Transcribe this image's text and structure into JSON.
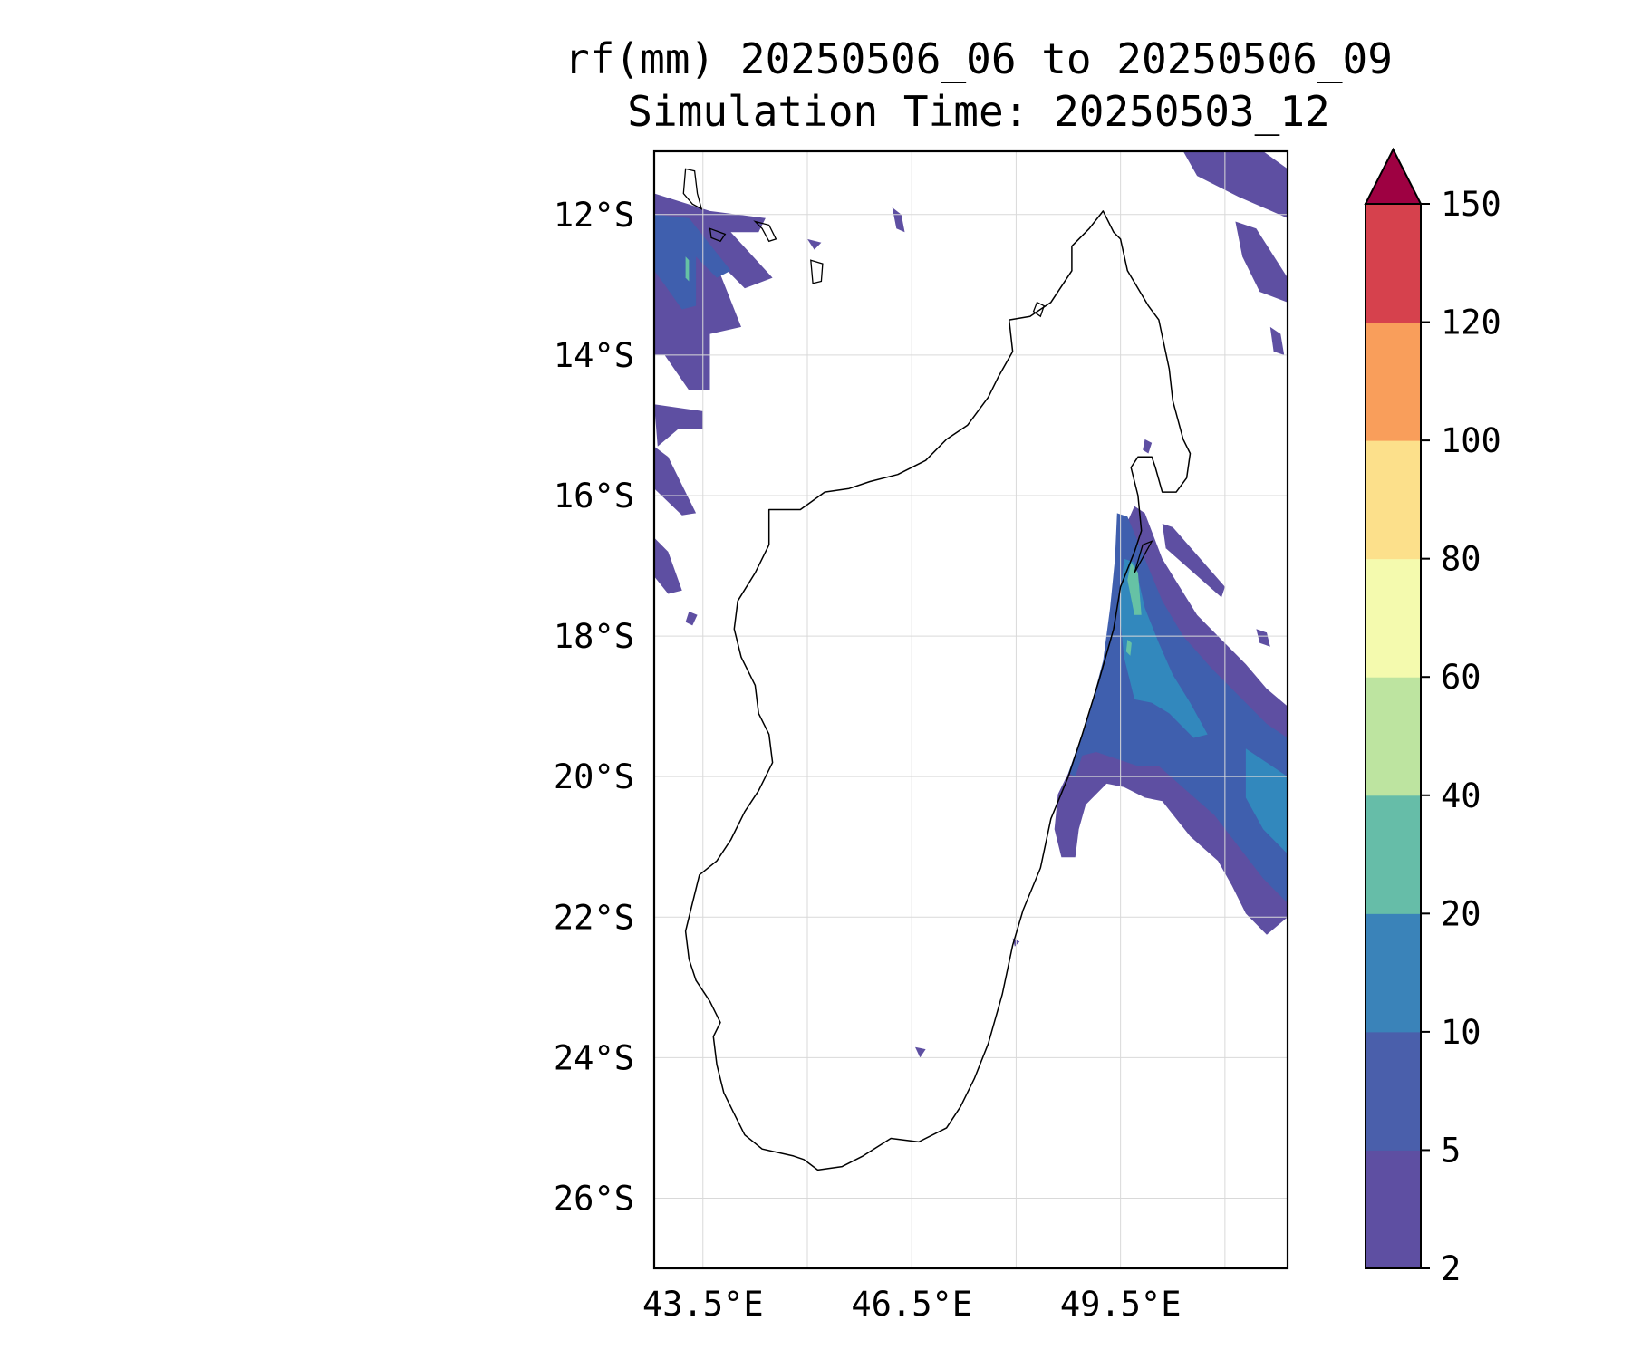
{
  "title": {
    "line1": "rf(mm) 20250506_06 to 20250506_09",
    "line2": "Simulation Time: 20250503_12"
  },
  "map": {
    "lon_range": [
      42.8,
      51.9
    ],
    "lat_range": [
      -27.0,
      -11.1
    ],
    "gridlines": true,
    "lat_ticks": [
      {
        "value": -12,
        "label": "12°S"
      },
      {
        "value": -14,
        "label": "14°S"
      },
      {
        "value": -16,
        "label": "16°S"
      },
      {
        "value": -18,
        "label": "18°S"
      },
      {
        "value": -20,
        "label": "20°S"
      },
      {
        "value": -22,
        "label": "22°S"
      },
      {
        "value": -24,
        "label": "24°S"
      },
      {
        "value": -26,
        "label": "26°S"
      }
    ],
    "lon_ticks": [
      {
        "value": 43.5,
        "label": "43.5°E"
      },
      {
        "value": 46.5,
        "label": "46.5°E"
      },
      {
        "value": 49.5,
        "label": "49.5°E"
      }
    ],
    "lon_gridlines": [
      43.5,
      45.0,
      46.5,
      48.0,
      49.5,
      51.0
    ],
    "coast_color": "#000000",
    "madagascar_coast": [
      [
        49.25,
        -11.95
      ],
      [
        49.4,
        -12.25
      ],
      [
        49.5,
        -12.35
      ],
      [
        49.6,
        -12.8
      ],
      [
        49.9,
        -13.3
      ],
      [
        50.05,
        -13.5
      ],
      [
        50.2,
        -14.2
      ],
      [
        50.25,
        -14.65
      ],
      [
        50.4,
        -15.2
      ],
      [
        50.5,
        -15.4
      ],
      [
        50.45,
        -15.75
      ],
      [
        50.3,
        -15.95
      ],
      [
        50.1,
        -15.95
      ],
      [
        50.0,
        -15.6
      ],
      [
        49.95,
        -15.45
      ],
      [
        49.75,
        -15.45
      ],
      [
        49.65,
        -15.6
      ],
      [
        49.75,
        -16.0
      ],
      [
        49.8,
        -16.5
      ],
      [
        49.7,
        -16.8
      ],
      [
        49.5,
        -17.3
      ],
      [
        49.4,
        -17.9
      ],
      [
        49.2,
        -18.6
      ],
      [
        48.95,
        -19.4
      ],
      [
        48.75,
        -20.0
      ],
      [
        48.5,
        -20.6
      ],
      [
        48.35,
        -21.3
      ],
      [
        48.1,
        -21.9
      ],
      [
        47.95,
        -22.4
      ],
      [
        47.8,
        -23.1
      ],
      [
        47.6,
        -23.8
      ],
      [
        47.4,
        -24.3
      ],
      [
        47.2,
        -24.7
      ],
      [
        47.0,
        -25.0
      ],
      [
        46.6,
        -25.2
      ],
      [
        46.2,
        -25.15
      ],
      [
        45.8,
        -25.4
      ],
      [
        45.5,
        -25.55
      ],
      [
        45.15,
        -25.6
      ],
      [
        44.95,
        -25.45
      ],
      [
        44.8,
        -25.4
      ],
      [
        44.35,
        -25.3
      ],
      [
        44.1,
        -25.1
      ],
      [
        43.95,
        -24.8
      ],
      [
        43.8,
        -24.5
      ],
      [
        43.7,
        -24.1
      ],
      [
        43.65,
        -23.7
      ],
      [
        43.75,
        -23.5
      ],
      [
        43.6,
        -23.2
      ],
      [
        43.4,
        -22.9
      ],
      [
        43.3,
        -22.6
      ],
      [
        43.25,
        -22.2
      ],
      [
        43.35,
        -21.8
      ],
      [
        43.45,
        -21.4
      ],
      [
        43.7,
        -21.2
      ],
      [
        43.9,
        -20.9
      ],
      [
        44.1,
        -20.5
      ],
      [
        44.3,
        -20.2
      ],
      [
        44.5,
        -19.8
      ],
      [
        44.45,
        -19.4
      ],
      [
        44.3,
        -19.1
      ],
      [
        44.25,
        -18.7
      ],
      [
        44.05,
        -18.3
      ],
      [
        43.95,
        -17.9
      ],
      [
        44.0,
        -17.5
      ],
      [
        44.25,
        -17.1
      ],
      [
        44.45,
        -16.7
      ],
      [
        44.45,
        -16.2
      ],
      [
        44.9,
        -16.2
      ],
      [
        45.25,
        -15.95
      ],
      [
        45.6,
        -15.9
      ],
      [
        45.9,
        -15.8
      ],
      [
        46.3,
        -15.7
      ],
      [
        46.7,
        -15.5
      ],
      [
        47.0,
        -15.2
      ],
      [
        47.3,
        -15.0
      ],
      [
        47.6,
        -14.6
      ],
      [
        47.75,
        -14.3
      ],
      [
        47.95,
        -13.95
      ],
      [
        47.9,
        -13.5
      ],
      [
        48.2,
        -13.45
      ],
      [
        48.5,
        -13.25
      ],
      [
        48.8,
        -12.8
      ],
      [
        48.8,
        -12.45
      ],
      [
        49.05,
        -12.2
      ],
      [
        49.25,
        -11.95
      ]
    ],
    "islands": [
      [
        [
          43.25,
          -11.35
        ],
        [
          43.38,
          -11.38
        ],
        [
          43.42,
          -11.7
        ],
        [
          43.48,
          -11.92
        ],
        [
          43.35,
          -11.85
        ],
        [
          43.22,
          -11.7
        ],
        [
          43.25,
          -11.35
        ]
      ],
      [
        [
          43.6,
          -12.2
        ],
        [
          43.82,
          -12.28
        ],
        [
          43.75,
          -12.38
        ],
        [
          43.62,
          -12.33
        ],
        [
          43.6,
          -12.2
        ]
      ],
      [
        [
          44.25,
          -12.1
        ],
        [
          44.45,
          -12.15
        ],
        [
          44.55,
          -12.35
        ],
        [
          44.45,
          -12.38
        ],
        [
          44.35,
          -12.2
        ],
        [
          44.25,
          -12.1
        ]
      ],
      [
        [
          45.05,
          -12.65
        ],
        [
          45.22,
          -12.7
        ],
        [
          45.2,
          -12.95
        ],
        [
          45.08,
          -12.98
        ],
        [
          45.05,
          -12.65
        ]
      ],
      [
        [
          48.3,
          -13.25
        ],
        [
          48.4,
          -13.3
        ],
        [
          48.35,
          -13.45
        ],
        [
          48.25,
          -13.38
        ],
        [
          48.3,
          -13.25
        ]
      ],
      [
        [
          49.82,
          -16.7
        ],
        [
          49.95,
          -16.65
        ],
        [
          49.7,
          -17.1
        ],
        [
          49.82,
          -16.7
        ]
      ]
    ],
    "rain_patches": [
      {
        "c": "#5e4fa2",
        "pts": [
          [
            42.8,
            -11.7
          ],
          [
            43.6,
            -11.95
          ],
          [
            44.4,
            -12.05
          ],
          [
            44.3,
            -12.25
          ],
          [
            43.9,
            -12.25
          ],
          [
            44.5,
            -12.9
          ],
          [
            44.1,
            -13.05
          ],
          [
            43.65,
            -12.6
          ],
          [
            44.05,
            -13.6
          ],
          [
            43.6,
            -13.7
          ],
          [
            43.6,
            -14.5
          ],
          [
            43.3,
            -14.5
          ],
          [
            42.95,
            -14.0
          ],
          [
            42.8,
            -14.0
          ]
        ]
      },
      {
        "c": "#5e4fa2",
        "pts": [
          [
            42.8,
            -14.7
          ],
          [
            43.5,
            -14.8
          ],
          [
            43.5,
            -15.05
          ],
          [
            43.15,
            -15.05
          ],
          [
            42.85,
            -15.3
          ]
        ]
      },
      {
        "c": "#5e4fa2",
        "pts": [
          [
            42.8,
            -15.3
          ],
          [
            43.0,
            -15.45
          ],
          [
            43.4,
            -16.25
          ],
          [
            43.2,
            -16.28
          ],
          [
            42.8,
            -15.9
          ]
        ]
      },
      {
        "c": "#5e4fa2",
        "pts": [
          [
            42.8,
            -16.6
          ],
          [
            43.0,
            -16.8
          ],
          [
            43.2,
            -17.35
          ],
          [
            43.0,
            -17.4
          ],
          [
            42.8,
            -17.15
          ]
        ]
      },
      {
        "c": "#5e4fa2",
        "pts": [
          [
            43.3,
            -17.65
          ],
          [
            43.42,
            -17.7
          ],
          [
            43.35,
            -17.85
          ],
          [
            43.25,
            -17.8
          ]
        ]
      },
      {
        "c": "#5e4fa2",
        "pts": [
          [
            45.0,
            -12.35
          ],
          [
            45.2,
            -12.4
          ],
          [
            45.1,
            -12.5
          ]
        ]
      },
      {
        "c": "#5e4fa2",
        "pts": [
          [
            46.22,
            -11.9
          ],
          [
            46.35,
            -12.0
          ],
          [
            46.4,
            -12.25
          ],
          [
            46.28,
            -12.2
          ]
        ]
      },
      {
        "c": "#5e4fa2",
        "pts": [
          [
            50.4,
            -11.1
          ],
          [
            51.55,
            -11.1
          ],
          [
            51.9,
            -11.35
          ],
          [
            51.9,
            -12.05
          ],
          [
            51.2,
            -11.75
          ],
          [
            50.6,
            -11.45
          ]
        ]
      },
      {
        "c": "#5e4fa2",
        "pts": [
          [
            51.15,
            -12.1
          ],
          [
            51.45,
            -12.2
          ],
          [
            51.9,
            -12.9
          ],
          [
            51.9,
            -13.25
          ],
          [
            51.5,
            -13.1
          ],
          [
            51.25,
            -12.6
          ]
        ]
      },
      {
        "c": "#5e4fa2",
        "pts": [
          [
            51.65,
            -13.6
          ],
          [
            51.8,
            -13.7
          ],
          [
            51.85,
            -14.0
          ],
          [
            51.7,
            -13.95
          ]
        ]
      },
      {
        "c": "#5e4fa2",
        "pts": [
          [
            49.85,
            -15.2
          ],
          [
            49.95,
            -15.25
          ],
          [
            49.9,
            -15.4
          ],
          [
            49.82,
            -15.35
          ]
        ]
      },
      {
        "c": "#5e4fa2",
        "pts": [
          [
            49.7,
            -16.15
          ],
          [
            49.85,
            -16.25
          ],
          [
            50.1,
            -16.9
          ],
          [
            50.35,
            -17.3
          ],
          [
            50.6,
            -17.7
          ],
          [
            50.95,
            -18.05
          ],
          [
            51.3,
            -18.4
          ],
          [
            51.6,
            -18.75
          ],
          [
            51.9,
            -19.0
          ],
          [
            51.9,
            -22.0
          ],
          [
            51.6,
            -22.25
          ],
          [
            51.3,
            -21.95
          ],
          [
            51.1,
            -21.55
          ],
          [
            50.9,
            -21.2
          ],
          [
            50.5,
            -20.85
          ],
          [
            50.3,
            -20.6
          ],
          [
            50.1,
            -20.35
          ],
          [
            49.85,
            -20.3
          ],
          [
            49.55,
            -20.15
          ],
          [
            49.3,
            -20.1
          ],
          [
            49.0,
            -20.4
          ],
          [
            48.9,
            -20.75
          ],
          [
            48.85,
            -21.15
          ],
          [
            48.65,
            -21.15
          ],
          [
            48.55,
            -20.75
          ],
          [
            48.6,
            -20.25
          ],
          [
            48.75,
            -19.95
          ],
          [
            48.95,
            -19.4
          ],
          [
            49.2,
            -18.6
          ],
          [
            49.35,
            -17.95
          ],
          [
            49.45,
            -17.2
          ],
          [
            49.5,
            -16.6
          ]
        ]
      },
      {
        "c": "#5e4fa2",
        "pts": [
          [
            50.1,
            -16.4
          ],
          [
            50.25,
            -16.45
          ],
          [
            51.0,
            -17.3
          ],
          [
            50.95,
            -17.45
          ],
          [
            50.15,
            -16.75
          ]
        ]
      },
      {
        "c": "#5e4fa2",
        "pts": [
          [
            51.45,
            -17.9
          ],
          [
            51.6,
            -17.95
          ],
          [
            51.65,
            -18.15
          ],
          [
            51.5,
            -18.1
          ]
        ]
      },
      {
        "c": "#5e4fa2",
        "pts": [
          [
            47.95,
            -22.3
          ],
          [
            48.05,
            -22.35
          ],
          [
            47.98,
            -22.42
          ]
        ]
      },
      {
        "c": "#5e4fa2",
        "pts": [
          [
            46.55,
            -23.85
          ],
          [
            46.7,
            -23.88
          ],
          [
            46.62,
            -24.0
          ]
        ]
      },
      {
        "c": "#3f5fae",
        "pts": [
          [
            42.8,
            -12.0
          ],
          [
            43.3,
            -12.05
          ],
          [
            43.5,
            -12.3
          ],
          [
            43.9,
            -12.8
          ],
          [
            43.7,
            -12.9
          ],
          [
            43.4,
            -12.6
          ],
          [
            43.4,
            -13.3
          ],
          [
            43.2,
            -13.35
          ],
          [
            42.95,
            -13.0
          ],
          [
            42.8,
            -12.8
          ]
        ]
      },
      {
        "c": "#3f5fae",
        "pts": [
          [
            49.45,
            -16.25
          ],
          [
            49.6,
            -16.3
          ],
          [
            49.85,
            -16.9
          ],
          [
            50.1,
            -17.5
          ],
          [
            50.4,
            -18.0
          ],
          [
            50.8,
            -18.45
          ],
          [
            51.2,
            -18.85
          ],
          [
            51.6,
            -19.25
          ],
          [
            51.9,
            -19.45
          ],
          [
            51.9,
            -21.8
          ],
          [
            51.55,
            -21.45
          ],
          [
            51.2,
            -21.0
          ],
          [
            50.85,
            -20.55
          ],
          [
            50.45,
            -20.2
          ],
          [
            50.05,
            -19.85
          ],
          [
            49.75,
            -19.85
          ],
          [
            49.45,
            -19.75
          ],
          [
            49.15,
            -19.65
          ],
          [
            48.95,
            -19.7
          ],
          [
            48.85,
            -20.0
          ],
          [
            48.75,
            -19.95
          ],
          [
            49.05,
            -19.1
          ],
          [
            49.25,
            -18.35
          ],
          [
            49.35,
            -17.6
          ],
          [
            49.42,
            -16.9
          ]
        ]
      },
      {
        "c": "#3288bd",
        "pts": [
          [
            49.55,
            -16.9
          ],
          [
            49.7,
            -16.95
          ],
          [
            49.85,
            -17.6
          ],
          [
            50.05,
            -18.1
          ],
          [
            50.25,
            -18.55
          ],
          [
            50.5,
            -18.95
          ],
          [
            50.75,
            -19.4
          ],
          [
            50.55,
            -19.45
          ],
          [
            50.2,
            -19.1
          ],
          [
            49.95,
            -18.95
          ],
          [
            49.7,
            -18.9
          ],
          [
            49.55,
            -18.3
          ],
          [
            49.48,
            -17.6
          ]
        ]
      },
      {
        "c": "#3288bd",
        "pts": [
          [
            51.3,
            -19.6
          ],
          [
            51.9,
            -20.0
          ],
          [
            51.9,
            -21.1
          ],
          [
            51.55,
            -20.75
          ],
          [
            51.3,
            -20.3
          ]
        ]
      },
      {
        "c": "#66c2a5",
        "pts": [
          [
            49.65,
            -16.95
          ],
          [
            49.75,
            -17.1
          ],
          [
            49.8,
            -17.7
          ],
          [
            49.7,
            -17.7
          ],
          [
            49.6,
            -17.2
          ]
        ]
      },
      {
        "c": "#66c2a5",
        "pts": [
          [
            43.25,
            -12.6
          ],
          [
            43.3,
            -12.65
          ],
          [
            43.3,
            -12.95
          ],
          [
            43.25,
            -12.9
          ]
        ]
      },
      {
        "c": "#66c2a5",
        "pts": [
          [
            49.6,
            -18.05
          ],
          [
            49.66,
            -18.1
          ],
          [
            49.64,
            -18.28
          ],
          [
            49.58,
            -18.22
          ]
        ]
      }
    ]
  },
  "colorbar": {
    "labels": [
      "2",
      "5",
      "10",
      "20",
      "40",
      "60",
      "80",
      "100",
      "120",
      "150"
    ],
    "colors": [
      "#5e4fa2",
      "#4a5fab",
      "#3a83b9",
      "#66bda8",
      "#bde4a0",
      "#f4faae",
      "#fce08b",
      "#f99e5b",
      "#d6414d"
    ],
    "extend_color": "#9e0142"
  }
}
